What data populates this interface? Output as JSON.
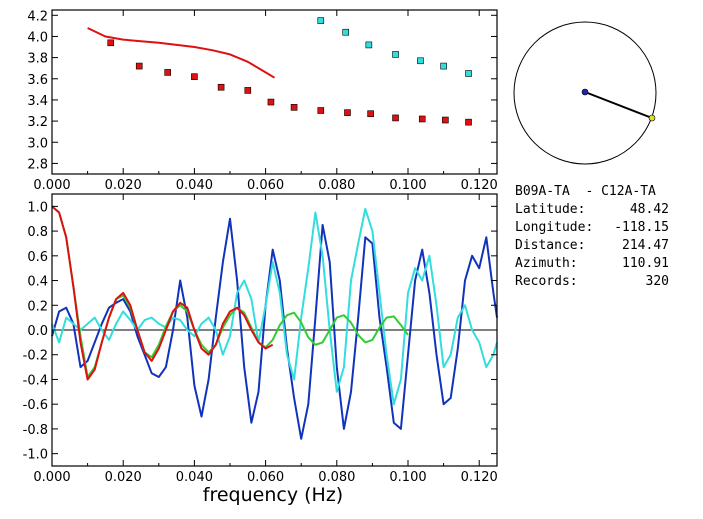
{
  "colors": {
    "red": "#dd1111",
    "cyan": "#33dddd",
    "blue": "#1133bb",
    "green": "#33cc33",
    "frame": "#000000",
    "station_dot": "#2222aa",
    "station_dot2": "#dddd33"
  },
  "info": {
    "title": "B09A-TA  - C12A-TA",
    "rows": [
      {
        "label": "Latitude:",
        "value": "48.42"
      },
      {
        "label": "Longitude:",
        "value": "-118.15"
      },
      {
        "label": "Distance:",
        "value": "214.47"
      },
      {
        "label": "Azimuth:",
        "value": "110.91"
      },
      {
        "label": "Records:",
        "value": "320"
      }
    ]
  },
  "chart_data": [
    {
      "type": "scatter",
      "xlim": [
        0.0,
        0.125
      ],
      "ylim": [
        2.7,
        4.25
      ],
      "xticks": [
        "0.000",
        "0.020",
        "0.040",
        "0.060",
        "0.080",
        "0.100",
        "0.120"
      ],
      "yticks": [
        "2.8",
        "3.0",
        "3.2",
        "3.4",
        "3.6",
        "3.8",
        "4.0",
        "4.2"
      ],
      "xtick_values": [
        0.0,
        0.02,
        0.04,
        0.06,
        0.08,
        0.1,
        0.12
      ],
      "ytick_values": [
        2.8,
        3.0,
        3.2,
        3.4,
        3.6,
        3.8,
        4.0,
        4.2
      ],
      "series": [
        {
          "color": "red",
          "kind": "line",
          "x": [
            0.01,
            0.015,
            0.02,
            0.025,
            0.03,
            0.035,
            0.04,
            0.045,
            0.05,
            0.055,
            0.06,
            0.0625
          ],
          "y": [
            4.08,
            4.0,
            3.97,
            3.955,
            3.94,
            3.92,
            3.9,
            3.87,
            3.83,
            3.76,
            3.66,
            3.61
          ]
        },
        {
          "color": "red",
          "kind": "marker",
          "x": [
            0.0165,
            0.0245,
            0.0325,
            0.04,
            0.0475,
            0.055,
            0.0615,
            0.068,
            0.0755,
            0.083,
            0.0895,
            0.0965,
            0.104,
            0.1105,
            0.117
          ],
          "y": [
            3.94,
            3.72,
            3.66,
            3.62,
            3.52,
            3.49,
            3.38,
            3.33,
            3.3,
            3.28,
            3.27,
            3.23,
            3.22,
            3.21,
            3.19
          ]
        },
        {
          "color": "cyan",
          "kind": "marker",
          "x": [
            0.0755,
            0.0825,
            0.089,
            0.0965,
            0.1035,
            0.11,
            0.117
          ],
          "y": [
            4.15,
            4.04,
            3.92,
            3.83,
            3.77,
            3.72,
            3.65
          ]
        }
      ]
    },
    {
      "type": "line",
      "xlabel": "frequency (Hz)",
      "xlim": [
        0.0,
        0.125
      ],
      "ylim": [
        -1.1,
        1.1
      ],
      "xticks": [
        "0.000",
        "0.020",
        "0.040",
        "0.060",
        "0.080",
        "0.100",
        "0.120"
      ],
      "yticks": [
        "1.0",
        "0.8",
        "0.6",
        "0.4",
        "0.2",
        "0.0",
        "-0.2",
        "-0.4",
        "-0.6",
        "-0.8",
        "-1.0"
      ],
      "xtick_values": [
        0.0,
        0.02,
        0.04,
        0.06,
        0.08,
        0.1,
        0.12
      ],
      "ytick_values": [
        1.0,
        0.8,
        0.6,
        0.4,
        0.2,
        0.0,
        -0.2,
        -0.4,
        -0.6,
        -0.8,
        -1.0
      ],
      "series": [
        {
          "color": "blue",
          "x": [
            0.0,
            0.002,
            0.004,
            0.006,
            0.008,
            0.01,
            0.012,
            0.014,
            0.016,
            0.018,
            0.02,
            0.022,
            0.024,
            0.026,
            0.028,
            0.03,
            0.032,
            0.034,
            0.036,
            0.038,
            0.04,
            0.042,
            0.044,
            0.046,
            0.048,
            0.05,
            0.052,
            0.054,
            0.056,
            0.058,
            0.06,
            0.062,
            0.064,
            0.066,
            0.068,
            0.07,
            0.072,
            0.074,
            0.076,
            0.078,
            0.08,
            0.082,
            0.084,
            0.086,
            0.088,
            0.09,
            0.092,
            0.094,
            0.096,
            0.098,
            0.1,
            0.102,
            0.104,
            0.106,
            0.108,
            0.11,
            0.112,
            0.114,
            0.116,
            0.118,
            0.12,
            0.122,
            0.124,
            0.125
          ],
          "y": [
            -0.05,
            0.15,
            0.18,
            0.05,
            -0.3,
            -0.25,
            -0.1,
            0.05,
            0.18,
            0.22,
            0.25,
            0.15,
            -0.05,
            -0.2,
            -0.35,
            -0.38,
            -0.3,
            0.0,
            0.4,
            0.1,
            -0.45,
            -0.7,
            -0.4,
            0.1,
            0.55,
            0.9,
            0.4,
            -0.3,
            -0.75,
            -0.5,
            0.2,
            0.65,
            0.4,
            -0.15,
            -0.55,
            -0.88,
            -0.6,
            0.1,
            0.85,
            0.55,
            -0.3,
            -0.8,
            -0.5,
            0.1,
            0.75,
            0.7,
            0.1,
            -0.3,
            -0.75,
            -0.8,
            -0.2,
            0.4,
            0.65,
            0.3,
            -0.2,
            -0.6,
            -0.55,
            -0.15,
            0.4,
            0.6,
            0.5,
            0.75,
            0.3,
            0.1
          ]
        },
        {
          "color": "cyan",
          "x": [
            0.0,
            0.002,
            0.004,
            0.006,
            0.008,
            0.01,
            0.012,
            0.014,
            0.016,
            0.018,
            0.02,
            0.022,
            0.024,
            0.026,
            0.028,
            0.03,
            0.032,
            0.034,
            0.036,
            0.038,
            0.04,
            0.042,
            0.044,
            0.046,
            0.048,
            0.05,
            0.052,
            0.054,
            0.056,
            0.058,
            0.06,
            0.062,
            0.064,
            0.066,
            0.068,
            0.07,
            0.072,
            0.074,
            0.076,
            0.078,
            0.08,
            0.082,
            0.084,
            0.086,
            0.088,
            0.09,
            0.092,
            0.094,
            0.096,
            0.098,
            0.1,
            0.102,
            0.104,
            0.106,
            0.108,
            0.11,
            0.112,
            0.114,
            0.116,
            0.118,
            0.12,
            0.122,
            0.124,
            0.125
          ],
          "y": [
            0.05,
            -0.1,
            0.1,
            0.05,
            0.0,
            0.05,
            0.1,
            0.0,
            -0.08,
            0.05,
            0.15,
            0.08,
            0.0,
            0.08,
            0.1,
            0.05,
            0.02,
            0.1,
            0.08,
            0.0,
            -0.05,
            0.05,
            0.1,
            0.0,
            -0.2,
            -0.05,
            0.3,
            0.4,
            0.25,
            -0.1,
            0.2,
            0.55,
            0.3,
            -0.2,
            -0.4,
            0.1,
            0.5,
            0.95,
            0.6,
            0.0,
            -0.5,
            -0.3,
            0.4,
            0.7,
            0.98,
            0.8,
            0.3,
            -0.2,
            -0.6,
            -0.4,
            0.3,
            0.5,
            0.4,
            0.6,
            0.2,
            -0.3,
            -0.2,
            0.1,
            0.2,
            0.0,
            -0.1,
            -0.3,
            -0.2,
            -0.1
          ]
        },
        {
          "color": "green",
          "x": [
            0.0,
            0.002,
            0.004,
            0.006,
            0.008,
            0.01,
            0.012,
            0.014,
            0.016,
            0.018,
            0.02,
            0.022,
            0.024,
            0.026,
            0.028,
            0.03,
            0.032,
            0.034,
            0.036,
            0.038,
            0.04,
            0.042,
            0.044,
            0.046,
            0.048,
            0.05,
            0.052,
            0.054,
            0.056,
            0.058,
            0.06,
            0.062,
            0.064,
            0.066,
            0.068,
            0.07,
            0.072,
            0.074,
            0.076,
            0.078,
            0.08,
            0.082,
            0.084,
            0.086,
            0.088,
            0.09,
            0.092,
            0.094,
            0.096,
            0.098,
            0.1
          ],
          "y": [
            1.0,
            0.95,
            0.75,
            0.35,
            -0.05,
            -0.38,
            -0.3,
            -0.1,
            0.1,
            0.25,
            0.28,
            0.18,
            0.0,
            -0.18,
            -0.22,
            -0.12,
            0.03,
            0.15,
            0.2,
            0.15,
            0.0,
            -0.12,
            -0.18,
            -0.12,
            0.02,
            0.12,
            0.18,
            0.14,
            0.02,
            -0.1,
            -0.14,
            -0.08,
            0.04,
            0.12,
            0.14,
            0.06,
            -0.06,
            -0.12,
            -0.1,
            0.0,
            0.1,
            0.12,
            0.06,
            -0.04,
            -0.1,
            -0.08,
            0.02,
            0.1,
            0.11,
            0.04,
            -0.04
          ]
        },
        {
          "color": "red",
          "x": [
            0.0,
            0.002,
            0.004,
            0.006,
            0.008,
            0.01,
            0.012,
            0.014,
            0.016,
            0.018,
            0.02,
            0.022,
            0.024,
            0.026,
            0.028,
            0.03,
            0.032,
            0.034,
            0.036,
            0.038,
            0.04,
            0.042,
            0.044,
            0.046,
            0.048,
            0.05,
            0.052,
            0.054,
            0.056,
            0.058,
            0.06,
            0.062
          ],
          "y": [
            1.0,
            0.95,
            0.75,
            0.35,
            -0.1,
            -0.4,
            -0.32,
            -0.1,
            0.1,
            0.25,
            0.3,
            0.2,
            0.0,
            -0.18,
            -0.25,
            -0.15,
            0.0,
            0.15,
            0.22,
            0.18,
            0.0,
            -0.15,
            -0.2,
            -0.12,
            0.05,
            0.15,
            0.18,
            0.12,
            0.0,
            -0.1,
            -0.15,
            -0.12
          ]
        }
      ]
    }
  ]
}
